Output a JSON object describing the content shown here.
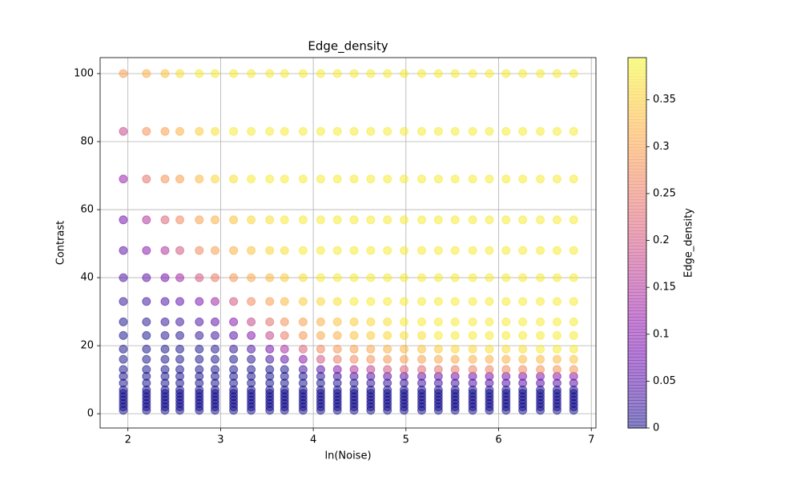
{
  "chart_data": {
    "type": "scatter",
    "title": "Edge_density",
    "x_label": "ln(Noise)",
    "y_label": "Contrast",
    "x": [
      1.95,
      2.2,
      2.4,
      2.56,
      2.77,
      2.94,
      3.14,
      3.33,
      3.53,
      3.69,
      3.89,
      4.08,
      4.26,
      4.44,
      4.62,
      4.8,
      4.98,
      5.17,
      5.35,
      5.53,
      5.72,
      5.9,
      6.08,
      6.26,
      6.45,
      6.63,
      6.81
    ],
    "y": [
      1,
      2,
      3,
      4,
      5,
      6,
      7,
      9,
      11,
      13,
      16,
      19,
      23,
      27,
      33,
      40,
      48,
      57,
      69,
      83,
      100
    ],
    "values": [
      [
        0,
        0,
        0,
        0,
        0,
        0,
        0,
        0,
        0,
        0,
        0,
        0,
        0,
        0,
        0,
        0,
        0,
        0,
        0,
        0,
        0,
        0,
        0,
        0,
        0,
        0,
        0
      ],
      [
        0,
        0,
        0,
        0,
        0,
        0,
        0,
        0,
        0,
        0,
        0,
        0,
        0,
        0,
        0,
        0,
        0,
        0,
        0,
        0,
        0,
        0,
        0,
        0,
        0,
        0,
        0
      ],
      [
        0,
        0,
        0,
        0,
        0,
        0,
        0,
        0,
        0,
        0,
        0,
        0,
        0,
        0,
        0,
        0,
        0,
        0,
        0,
        0,
        0,
        0,
        0,
        0,
        0,
        0,
        0
      ],
      [
        0,
        0,
        0,
        0,
        0,
        0,
        0,
        0,
        0,
        0,
        0,
        0,
        0,
        0,
        0,
        0,
        0,
        0,
        0,
        0,
        0,
        0,
        0,
        0,
        0,
        0,
        0
      ],
      [
        0,
        0,
        0,
        0,
        0,
        0,
        0,
        0,
        0,
        0,
        0,
        0,
        0,
        0,
        0,
        0,
        0,
        0,
        0,
        0,
        0,
        0,
        0,
        0,
        0,
        0,
        0
      ],
      [
        0,
        0,
        0,
        0,
        0,
        0,
        0,
        0,
        0,
        0,
        0,
        0,
        0,
        0,
        0,
        0,
        0,
        0,
        0,
        0,
        0,
        0,
        0,
        0,
        0,
        0,
        0
      ],
      [
        0,
        0,
        0,
        0,
        0,
        0,
        0,
        0,
        0,
        0,
        0,
        0,
        0,
        0,
        0,
        0,
        0,
        0,
        0,
        0,
        0,
        0,
        0,
        0,
        0,
        0,
        0
      ],
      [
        0,
        0,
        0,
        0,
        0,
        0,
        0,
        0,
        0,
        0,
        0,
        0,
        0.01,
        0.01,
        0.02,
        0.02,
        0.02,
        0.03,
        0.03,
        0.03,
        0.04,
        0.04,
        0.04,
        0.05,
        0.05,
        0.05,
        0.05
      ],
      [
        0,
        0,
        0,
        0,
        0,
        0,
        0,
        0,
        0,
        0,
        0,
        0.01,
        0.02,
        0.03,
        0.04,
        0.05,
        0.05,
        0.06,
        0.06,
        0.07,
        0.07,
        0.08,
        0.08,
        0.09,
        0.09,
        0.1,
        0.1
      ],
      [
        0,
        0,
        0,
        0,
        0,
        0,
        0,
        0,
        0,
        0,
        0.03,
        0.05,
        0.1,
        0.15,
        0.17,
        0.2,
        0.22,
        0.23,
        0.24,
        0.25,
        0.26,
        0.26,
        0.27,
        0.27,
        0.28,
        0.28,
        0.29
      ],
      [
        0,
        0,
        0,
        0,
        0,
        0,
        0,
        0.01,
        0.03,
        0.06,
        0.1,
        0.2,
        0.25,
        0.27,
        0.28,
        0.29,
        0.3,
        0.3,
        0.31,
        0.31,
        0.32,
        0.32,
        0.32,
        0.33,
        0.33,
        0.33,
        0.34
      ],
      [
        0,
        0,
        0,
        0,
        0,
        0.01,
        0.02,
        0.04,
        0.08,
        0.14,
        0.22,
        0.27,
        0.29,
        0.3,
        0.31,
        0.32,
        0.33,
        0.34,
        0.35,
        0.36,
        0.36,
        0.37,
        0.37,
        0.37,
        0.38,
        0.38,
        0.38
      ],
      [
        0,
        0,
        0.01,
        0.01,
        0.02,
        0.03,
        0.05,
        0.1,
        0.18,
        0.25,
        0.29,
        0.31,
        0.32,
        0.34,
        0.35,
        0.36,
        0.37,
        0.37,
        0.38,
        0.38,
        0.38,
        0.38,
        0.38,
        0.38,
        0.38,
        0.38,
        0.38
      ],
      [
        0,
        0.01,
        0.02,
        0.03,
        0.04,
        0.06,
        0.1,
        0.18,
        0.24,
        0.28,
        0.3,
        0.32,
        0.34,
        0.35,
        0.36,
        0.37,
        0.38,
        0.38,
        0.38,
        0.38,
        0.38,
        0.38,
        0.38,
        0.38,
        0.38,
        0.38,
        0.38
      ],
      [
        0.02,
        0.03,
        0.04,
        0.06,
        0.09,
        0.13,
        0.2,
        0.27,
        0.3,
        0.33,
        0.35,
        0.36,
        0.37,
        0.38,
        0.38,
        0.38,
        0.38,
        0.38,
        0.38,
        0.38,
        0.38,
        0.38,
        0.38,
        0.38,
        0.38,
        0.38,
        0.38
      ],
      [
        0.04,
        0.06,
        0.08,
        0.13,
        0.2,
        0.25,
        0.29,
        0.31,
        0.33,
        0.35,
        0.37,
        0.38,
        0.38,
        0.38,
        0.38,
        0.38,
        0.38,
        0.38,
        0.38,
        0.38,
        0.38,
        0.38,
        0.38,
        0.38,
        0.38,
        0.38,
        0.38
      ],
      [
        0.06,
        0.1,
        0.15,
        0.2,
        0.27,
        0.3,
        0.32,
        0.34,
        0.36,
        0.37,
        0.38,
        0.38,
        0.38,
        0.38,
        0.38,
        0.38,
        0.38,
        0.38,
        0.38,
        0.38,
        0.38,
        0.38,
        0.38,
        0.38,
        0.38,
        0.38,
        0.38
      ],
      [
        0.08,
        0.15,
        0.22,
        0.27,
        0.3,
        0.32,
        0.34,
        0.36,
        0.37,
        0.38,
        0.38,
        0.38,
        0.38,
        0.38,
        0.38,
        0.38,
        0.38,
        0.38,
        0.38,
        0.38,
        0.38,
        0.38,
        0.38,
        0.38,
        0.38,
        0.38,
        0.38
      ],
      [
        0.12,
        0.24,
        0.28,
        0.3,
        0.33,
        0.36,
        0.37,
        0.38,
        0.38,
        0.38,
        0.38,
        0.38,
        0.38,
        0.38,
        0.38,
        0.38,
        0.38,
        0.38,
        0.38,
        0.38,
        0.38,
        0.38,
        0.38,
        0.38,
        0.38,
        0.38,
        0.38
      ],
      [
        0.18,
        0.28,
        0.3,
        0.32,
        0.35,
        0.37,
        0.38,
        0.38,
        0.38,
        0.38,
        0.38,
        0.38,
        0.38,
        0.38,
        0.38,
        0.38,
        0.38,
        0.38,
        0.38,
        0.38,
        0.38,
        0.38,
        0.38,
        0.38,
        0.38,
        0.38,
        0.38
      ],
      [
        0.3,
        0.32,
        0.34,
        0.37,
        0.38,
        0.38,
        0.38,
        0.38,
        0.38,
        0.38,
        0.38,
        0.38,
        0.38,
        0.38,
        0.38,
        0.38,
        0.38,
        0.38,
        0.38,
        0.38,
        0.38,
        0.38,
        0.38,
        0.38,
        0.38,
        0.38,
        0.38
      ]
    ],
    "xlim": [
      1.7,
      7.05
    ],
    "ylim": [
      -4.2,
      104.7
    ],
    "xticks": [
      2,
      3,
      4,
      5,
      6,
      7
    ],
    "yticks": [
      0,
      20,
      40,
      60,
      80,
      100
    ],
    "grid": true,
    "colormap": "plasma",
    "alpha": 0.5,
    "colorbar": {
      "label": "Edge_density",
      "lim": [
        0,
        0.395
      ],
      "ticks": [
        0,
        0.05,
        0.1,
        0.15,
        0.2,
        0.25,
        0.3,
        0.35
      ]
    }
  }
}
